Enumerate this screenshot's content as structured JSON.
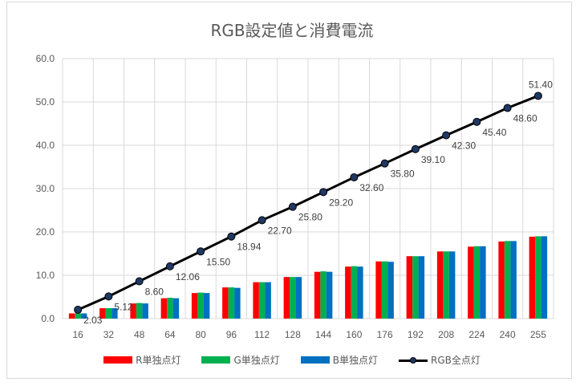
{
  "chart_data": {
    "type": "bar",
    "title": "RGB設定値と消費電流",
    "categories": [
      "16",
      "32",
      "48",
      "64",
      "80",
      "96",
      "112",
      "128",
      "144",
      "160",
      "176",
      "192",
      "208",
      "224",
      "240",
      "255"
    ],
    "ylim": [
      0,
      60
    ],
    "yticks": [
      "0.0",
      "10.0",
      "20.0",
      "30.0",
      "40.0",
      "50.0",
      "60.0"
    ],
    "grid": true,
    "legend_position": "bottom",
    "series": [
      {
        "name": "R単独点灯",
        "kind": "bar",
        "color": "#ff0000",
        "values": [
          1.2,
          2.4,
          3.5,
          4.7,
          5.9,
          7.2,
          8.4,
          9.6,
          10.8,
          12.0,
          13.2,
          14.4,
          15.5,
          16.6,
          17.8,
          18.9
        ]
      },
      {
        "name": "G単独点灯",
        "kind": "bar",
        "color": "#00b050",
        "values": [
          1.2,
          2.4,
          3.6,
          4.8,
          6.0,
          7.2,
          8.4,
          9.6,
          10.9,
          12.1,
          13.2,
          14.4,
          15.5,
          16.7,
          17.9,
          19.0
        ]
      },
      {
        "name": "B単独点灯",
        "kind": "bar",
        "color": "#0070c0",
        "values": [
          1.2,
          2.4,
          3.5,
          4.7,
          5.9,
          7.1,
          8.4,
          9.6,
          10.8,
          12.0,
          13.1,
          14.4,
          15.5,
          16.7,
          17.9,
          19.0
        ]
      },
      {
        "name": "RGB全点灯",
        "kind": "line",
        "color": "#000000",
        "marker_color": "#1f3864",
        "values": [
          2.03,
          5.12,
          8.6,
          12.06,
          15.5,
          18.94,
          22.7,
          25.8,
          29.2,
          32.6,
          35.8,
          39.1,
          42.3,
          45.4,
          48.6,
          51.4
        ],
        "data_labels": [
          "2.03",
          "5.12",
          "8.60",
          "12.06",
          "15.50",
          "18.94",
          "22.70",
          "25.80",
          "29.20",
          "32.60",
          "35.80",
          "39.10",
          "42.30",
          "45.40",
          "48.60",
          "51.40"
        ]
      }
    ]
  }
}
